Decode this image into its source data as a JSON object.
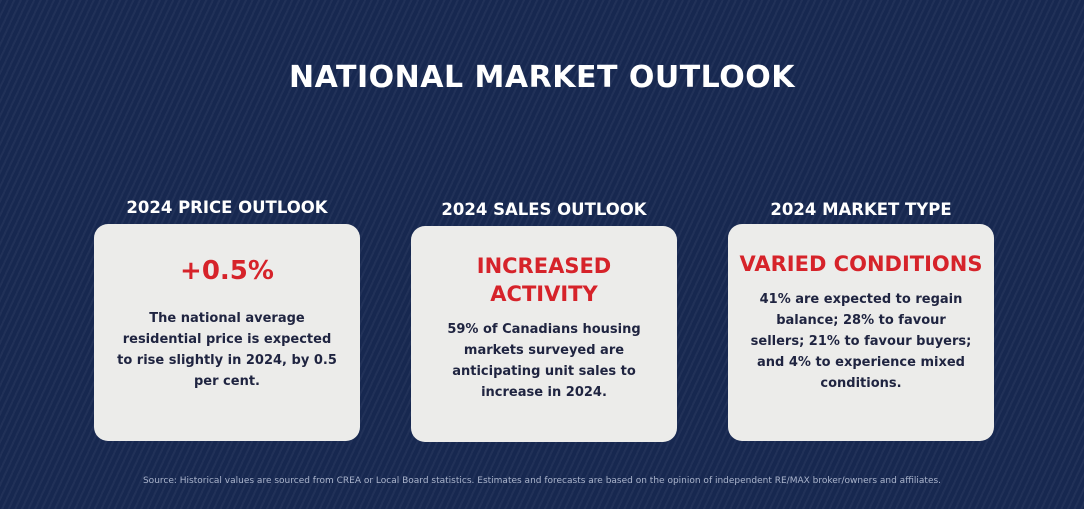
{
  "title": "NATIONAL MARKET OUTLOOK",
  "cards": [
    {
      "label": "2024 PRICE OUTLOOK",
      "headline": "+0.5%",
      "description": "The national average residential price is expected to rise slightly in 2024, by 0.5 per cent."
    },
    {
      "label": "2024 SALES OUTLOOK",
      "headline": "INCREASED ACTIVITY",
      "description": "59% of Canadians housing markets surveyed are anticipating unit sales to increase in 2024."
    },
    {
      "label": "2024 MARKET TYPE",
      "headline": "VARIED CONDITIONS",
      "description": "41% are expected to regain balance; 28% to favour sellers; 21% to favour buyers; and 4% to experience mixed conditions."
    }
  ],
  "source": "Source: Historical values are sourced from CREA or Local Board statistics. Estimates and forecasts are based on the opinion of independent RE/MAX broker/owners and affiliates.",
  "colors": {
    "background": "#172850",
    "card": "#ececea",
    "accent": "#d6232a",
    "body_text": "#1f2440"
  }
}
